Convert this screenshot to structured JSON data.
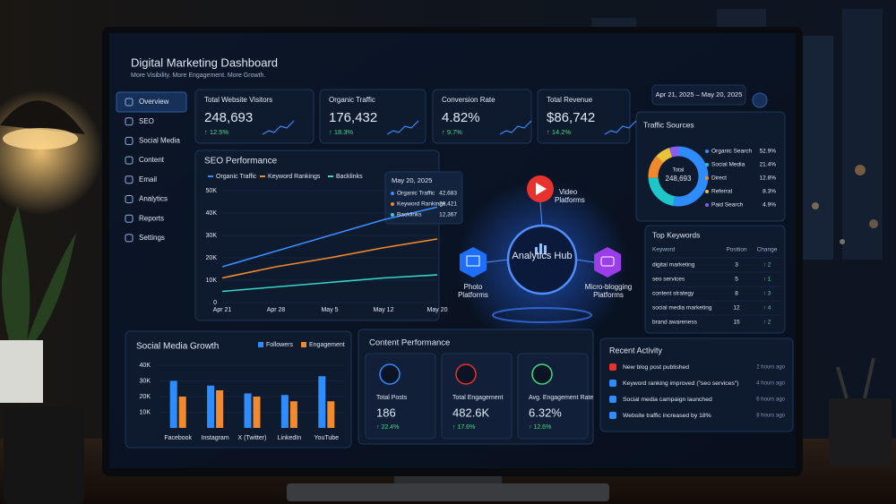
{
  "header": {
    "title": "Digital Marketing Dashboard",
    "subtitle": "More Visibility. More Engagement. More Growth.",
    "date_range": "Apr 21, 2025 – May 20, 2025"
  },
  "sidebar": [
    "Overview",
    "SEO",
    "Social Media",
    "Content",
    "Email",
    "Analytics",
    "Reports",
    "Settings"
  ],
  "kpis": [
    {
      "label": "Total Website Visitors",
      "value": "248,693",
      "change": "↑ 12.5%"
    },
    {
      "label": "Organic Traffic",
      "value": "176,432",
      "change": "↑ 18.3%"
    },
    {
      "label": "Conversion Rate",
      "value": "4.82%",
      "change": "↑ 9.7%"
    },
    {
      "label": "Total Revenue",
      "value": "$86,742",
      "change": "↑ 14.2%"
    }
  ],
  "seo_performance": {
    "type": "line",
    "title": "SEO Performance",
    "categories": [
      "Apr 21",
      "Apr 28",
      "May 5",
      "May 12",
      "May 20"
    ],
    "series": [
      {
        "name": "Organic Traffic",
        "color": "#3b8cff",
        "values": [
          16000,
          23000,
          30000,
          37000,
          42683
        ],
        "value_labels": [
          null,
          null,
          null,
          null,
          "42,683"
        ]
      },
      {
        "name": "Keyword Rankings",
        "color": "#f08a2c",
        "values": [
          11000,
          16000,
          20000,
          24500,
          28421
        ],
        "value_labels": [
          null,
          null,
          null,
          null,
          "28,421"
        ]
      },
      {
        "name": "Backlinks",
        "color": "#35d6c8",
        "values": [
          5000,
          7000,
          9000,
          11000,
          12367
        ],
        "value_labels": [
          null,
          null,
          null,
          null,
          "12,367"
        ]
      }
    ],
    "ylim": [
      0,
      50000
    ],
    "yticks": [
      0,
      {
        "value": 10000,
        "label": "10K"
      },
      {
        "value": 20000,
        "label": "20K"
      },
      {
        "value": 30000,
        "label": "30K"
      },
      {
        "value": 40000,
        "label": "40K"
      },
      {
        "value": 50000,
        "label": "50K"
      }
    ],
    "tooltip_title": "May 20, 2025"
  },
  "hub": {
    "center": "Analytics Hub",
    "nodes": [
      "Video Platforms",
      "Photo Platforms",
      "Micro-blogging Platforms"
    ]
  },
  "traffic_sources": {
    "type": "pie",
    "title": "Traffic Sources",
    "center_label": "Total",
    "categories": [
      "Organic Search",
      "Social Media",
      "Direct",
      "Referral",
      "Paid Search"
    ],
    "values": [
      52.9,
      21.4,
      12.8,
      8.3,
      4.9
    ],
    "value_labels": [
      "52.9%",
      "21.4%",
      "12.8%",
      "8.3%",
      "4.9%"
    ],
    "colors": [
      "#2f8cff",
      "#1fc6c9",
      "#f08a2c",
      "#e8c23a",
      "#8a5cf0"
    ]
  },
  "top_keywords": {
    "title": "Top Keywords",
    "columns": [
      "Keyword",
      "Position",
      "Change"
    ],
    "rows": [
      [
        "digital marketing",
        3,
        "↑ 2"
      ],
      [
        "seo services",
        5,
        "↑ 1"
      ],
      [
        "content strategy",
        8,
        "↑ 3"
      ],
      [
        "social media marketing",
        12,
        "↑ 4"
      ],
      [
        "brand awareness",
        15,
        "↑ 2"
      ]
    ]
  },
  "social_media_growth": {
    "type": "bar",
    "title": "Social Media Growth",
    "categories": [
      "Facebook",
      "Instagram",
      "X (Twitter)",
      "LinkedIn",
      "YouTube"
    ],
    "series": [
      {
        "name": "Followers",
        "color": "#2f8cff",
        "values": [
          30000,
          27000,
          22000,
          21000,
          33000
        ]
      },
      {
        "name": "Engagement",
        "color": "#f08a2c",
        "values": [
          20000,
          24000,
          20000,
          17000,
          17000
        ]
      }
    ],
    "ylim": [
      0,
      40000
    ],
    "yticks": [
      {
        "value": 10000,
        "label": "10K"
      },
      {
        "value": 20000,
        "label": "20K"
      },
      {
        "value": 30000,
        "label": "30K"
      },
      {
        "value": 40000,
        "label": "40K"
      }
    ]
  },
  "content_performance": {
    "title": "Content Performance",
    "items": [
      {
        "label": "Total Posts",
        "value": "186",
        "change": "↑ 22.4%"
      },
      {
        "label": "Total Engagement",
        "value": "482.6K",
        "change": "↑ 17.6%"
      },
      {
        "label": "Avg. Engagement Rate",
        "value": "6.32%",
        "change": "↑ 12.6%"
      }
    ]
  },
  "recent_activity": {
    "title": "Recent Activity",
    "items": [
      {
        "text": "New blog post published",
        "time": "2 hours ago"
      },
      {
        "text": "Keyword ranking improved (\"seo services\")",
        "time": "4 hours ago"
      },
      {
        "text": "Social media campaign launched",
        "time": "6 hours ago"
      },
      {
        "text": "Website traffic increased by 18%",
        "time": "8 hours ago"
      }
    ]
  }
}
